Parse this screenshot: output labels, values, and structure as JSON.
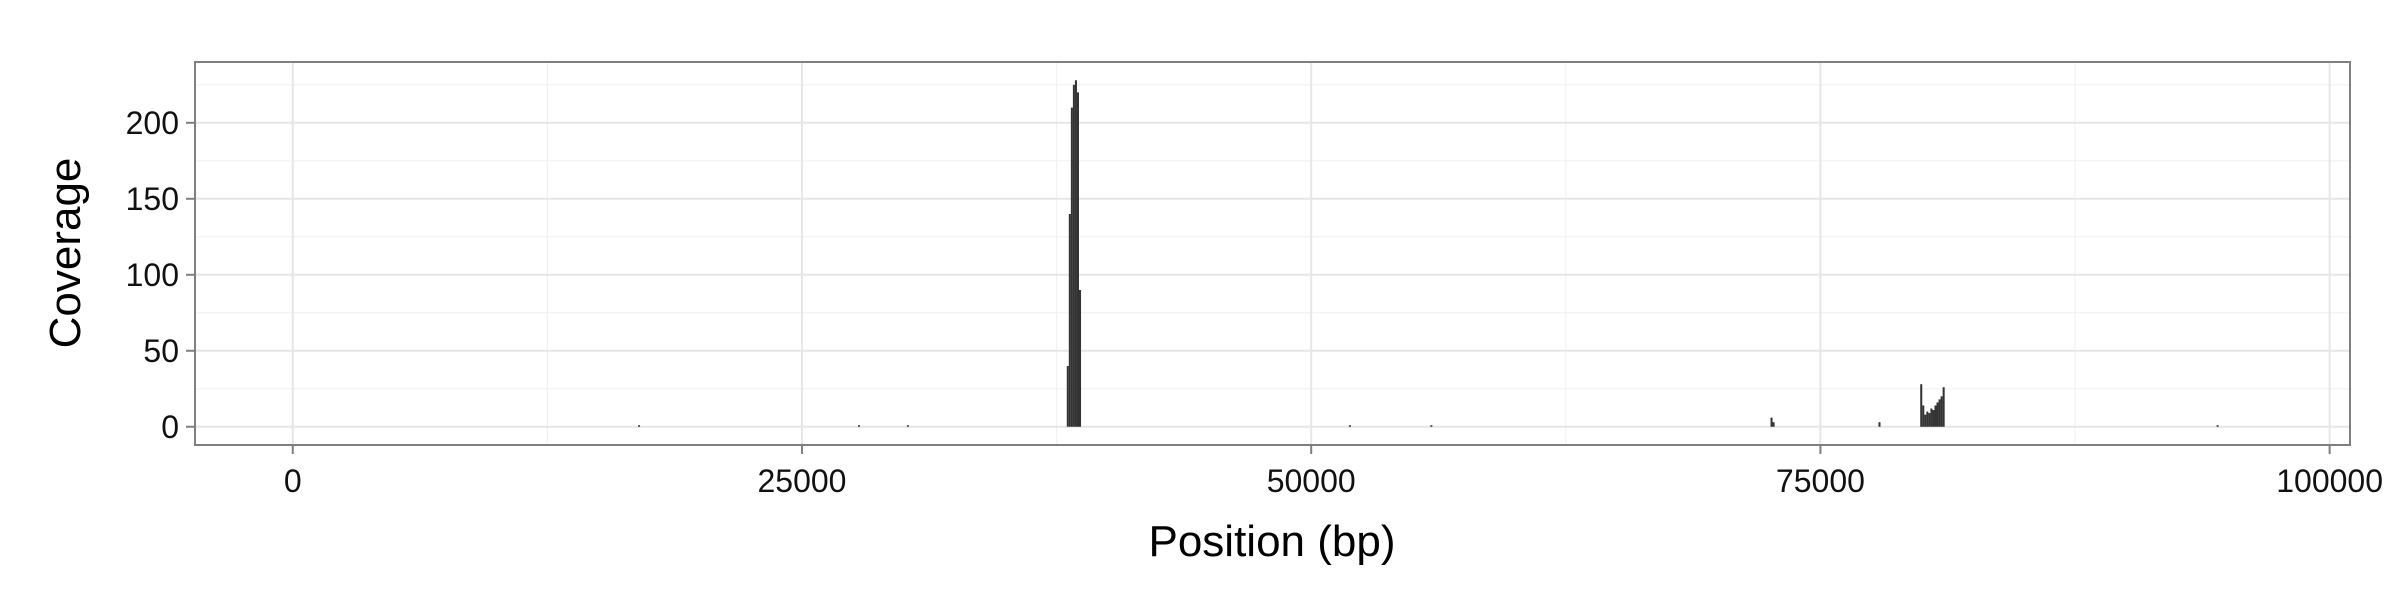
{
  "chart_data": {
    "type": "bar",
    "xlabel": "Position (bp)",
    "ylabel": "Coverage",
    "xlim": [
      -4800,
      101000
    ],
    "ylim": [
      -12,
      240
    ],
    "x_ticks": [
      0,
      25000,
      50000,
      75000,
      100000
    ],
    "y_ticks": [
      0,
      50,
      100,
      150,
      200
    ],
    "x_tick_labels": [
      "0",
      "25000",
      "50000",
      "75000",
      "100000"
    ],
    "y_tick_labels": [
      "0",
      "50",
      "100",
      "150",
      "200"
    ],
    "grid": true,
    "legend": "none",
    "colors": {
      "bar": "#333333",
      "panel": "#ffffff",
      "grid_major": "#e6e6e6",
      "grid_minor": "#f2f2f2",
      "border": "#7f7f7f"
    },
    "bin_width": 100,
    "series": [
      {
        "x": [
          17000,
          27800,
          30200,
          38050,
          38150,
          38250,
          38350,
          38450,
          38550,
          38650,
          51900,
          55900,
          72600,
          72700,
          77900,
          79950,
          80050,
          80150,
          80250,
          80350,
          80450,
          80550,
          80650,
          80750,
          80850,
          80950,
          81050,
          94500
        ],
        "values": [
          1,
          1,
          1,
          40,
          140,
          210,
          225,
          228,
          220,
          90,
          1,
          1,
          6,
          3,
          3,
          28,
          14,
          8,
          10,
          9,
          12,
          11,
          14,
          16,
          18,
          20,
          26,
          1
        ]
      }
    ]
  }
}
